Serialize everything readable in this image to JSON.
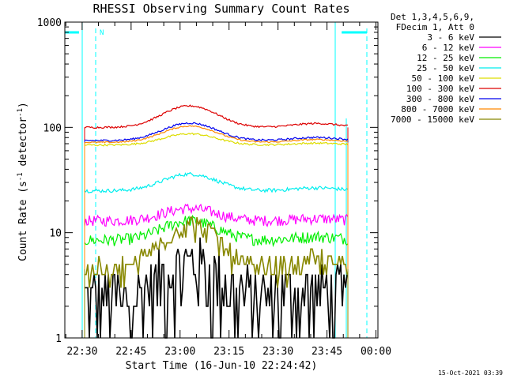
{
  "chart_data": {
    "type": "line",
    "title": "RHESSI Observing Summary Count Rates",
    "xlabel": "Start Time (16-Jun-10 22:24:42)",
    "ylabel_parts": [
      "Count Rate (s",
      "-1",
      " detector",
      "-1",
      ")"
    ],
    "yscale": "log",
    "ylim": [
      1,
      1000
    ],
    "xlim_minutes": [
      -5.3,
      90.6
    ],
    "x_ticks": [
      {
        "label": "22:30",
        "minute": 0
      },
      {
        "label": "22:45",
        "minute": 15
      },
      {
        "label": "23:00",
        "minute": 30
      },
      {
        "label": "23:15",
        "minute": 45
      },
      {
        "label": "23:30",
        "minute": 60
      },
      {
        "label": "23:45",
        "minute": 75
      },
      {
        "label": "00:00",
        "minute": 90
      }
    ],
    "y_ticks": [
      {
        "label": "1",
        "value": 1
      },
      {
        "label": "10",
        "value": 10
      },
      {
        "label": "100",
        "value": 100
      },
      {
        "label": "1000",
        "value": 1000
      }
    ],
    "legend_header": [
      "Det 1,3,4,5,6,9,",
      "FDecim 1, Att 0"
    ],
    "timestamp": "15-Oct-2021 03:39",
    "annotation_n": "N",
    "series": [
      {
        "name": "3 - 6 keV",
        "color": "#000000",
        "base": 2.5,
        "peak": 5.2,
        "noise": 0.5,
        "style": "step"
      },
      {
        "name": "6 - 12 keV",
        "color": "#ff00ff",
        "base": 13,
        "peak": 17,
        "noise": 0.12
      },
      {
        "name": "12 - 25 keV",
        "color": "#00ee00",
        "base": 8.5,
        "peak": 13,
        "noise": 0.13
      },
      {
        "name": "25 - 50 keV",
        "color": "#00eeee",
        "base": 25,
        "peak": 36,
        "noise": 0.04
      },
      {
        "name": "50 - 100 keV",
        "color": "#dddd00",
        "base": 68,
        "peak": 87,
        "noise": 0.02
      },
      {
        "name": "100 - 300 keV",
        "color": "#dd0000",
        "base": 100,
        "peak": 160,
        "noise": 0.02
      },
      {
        "name": "300 - 800 keV",
        "color": "#0000ee",
        "base": 75,
        "peak": 110,
        "noise": 0.02
      },
      {
        "name": "800 - 7000 keV",
        "color": "#ff8800",
        "base": 72,
        "peak": 103,
        "noise": 0.015
      },
      {
        "name": "7000 - 15000 keV",
        "color": "#888800",
        "base": 4.5,
        "peak": 12,
        "noise": 0.15,
        "style": "step"
      }
    ],
    "shading_intervals_minutes": [
      [
        -5.3,
        0.5
      ],
      [
        79.5,
        90.6
      ]
    ],
    "shading_color": "#00ffff"
  }
}
